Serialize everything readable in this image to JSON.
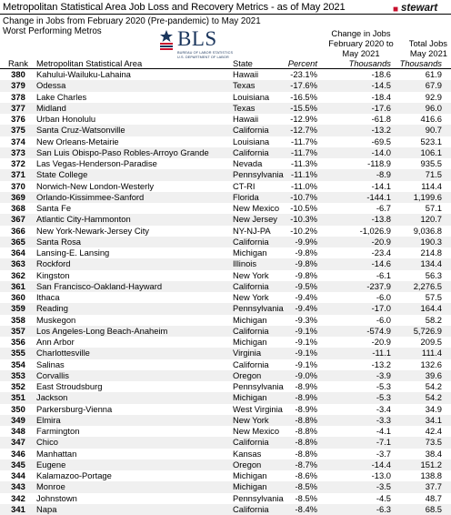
{
  "header": {
    "title": "Metropolitan Statistical Area Job Loss and Recovery Metrics - as of May 2021",
    "subtitle_line1": "Change in Jobs from February 2020 (Pre-pandemic) to May 2021",
    "subtitle_line2": "Worst Performing Metros",
    "brand": "stewart",
    "bls_logo_text": "BLS",
    "bls_logo_line1": "BUREAU OF LABOR STATISTICS",
    "bls_logo_line2": "U.S. DEPARTMENT OF LABOR"
  },
  "columns": {
    "rank": "Rank",
    "area": "Metropolitan Statistical Area",
    "state": "State",
    "change_group_line1": "Change in Jobs",
    "change_group_line2": "February 2020 to",
    "change_group_line3": "May 2021",
    "percent": "Percent",
    "thousands": "Thousands",
    "total_line1": "Total Jobs",
    "total_line2": "May 2021",
    "total_line3": "Thousands"
  },
  "rows": [
    {
      "rank": "380",
      "area": "Kahului-Wailuku-Lahaina",
      "state": "Hawaii",
      "pct": "-23.1%",
      "thou": "-18.6",
      "jobs": "61.9"
    },
    {
      "rank": "379",
      "area": "Odessa",
      "state": "Texas",
      "pct": "-17.6%",
      "thou": "-14.5",
      "jobs": "67.9"
    },
    {
      "rank": "378",
      "area": "Lake Charles",
      "state": "Louisiana",
      "pct": "-16.5%",
      "thou": "-18.4",
      "jobs": "92.9"
    },
    {
      "rank": "377",
      "area": "Midland",
      "state": "Texas",
      "pct": "-15.5%",
      "thou": "-17.6",
      "jobs": "96.0"
    },
    {
      "rank": "376",
      "area": "Urban Honolulu",
      "state": "Hawaii",
      "pct": "-12.9%",
      "thou": "-61.8",
      "jobs": "416.6"
    },
    {
      "rank": "375",
      "area": "Santa Cruz-Watsonville",
      "state": "California",
      "pct": "-12.7%",
      "thou": "-13.2",
      "jobs": "90.7"
    },
    {
      "rank": "374",
      "area": "New Orleans-Metairie",
      "state": "Louisiana",
      "pct": "-11.7%",
      "thou": "-69.5",
      "jobs": "523.1"
    },
    {
      "rank": "373",
      "area": "San Luis Obispo-Paso Robles-Arroyo Grande",
      "state": "California",
      "pct": "-11.7%",
      "thou": "-14.0",
      "jobs": "106.1"
    },
    {
      "rank": "372",
      "area": "Las Vegas-Henderson-Paradise",
      "state": "Nevada",
      "pct": "-11.3%",
      "thou": "-118.9",
      "jobs": "935.5"
    },
    {
      "rank": "371",
      "area": "State College",
      "state": "Pennsylvania",
      "pct": "-11.1%",
      "thou": "-8.9",
      "jobs": "71.5"
    },
    {
      "rank": "370",
      "area": "Norwich-New London-Westerly",
      "state": "CT-RI",
      "pct": "-11.0%",
      "thou": "-14.1",
      "jobs": "114.4"
    },
    {
      "rank": "369",
      "area": "Orlando-Kissimmee-Sanford",
      "state": "Florida",
      "pct": "-10.7%",
      "thou": "-144.1",
      "jobs": "1,199.6"
    },
    {
      "rank": "368",
      "area": "Santa Fe",
      "state": "New Mexico",
      "pct": "-10.5%",
      "thou": "-6.7",
      "jobs": "57.1"
    },
    {
      "rank": "367",
      "area": "Atlantic City-Hammonton",
      "state": "New Jersey",
      "pct": "-10.3%",
      "thou": "-13.8",
      "jobs": "120.7"
    },
    {
      "rank": "366",
      "area": "New York-Newark-Jersey City",
      "state": "NY-NJ-PA",
      "pct": "-10.2%",
      "thou": "-1,026.9",
      "jobs": "9,036.8"
    },
    {
      "rank": "365",
      "area": "Santa Rosa",
      "state": "California",
      "pct": "-9.9%",
      "thou": "-20.9",
      "jobs": "190.3"
    },
    {
      "rank": "364",
      "area": "Lansing-E. Lansing",
      "state": "Michigan",
      "pct": "-9.8%",
      "thou": "-23.4",
      "jobs": "214.8"
    },
    {
      "rank": "363",
      "area": "Rockford",
      "state": "Illinois",
      "pct": "-9.8%",
      "thou": "-14.6",
      "jobs": "134.4"
    },
    {
      "rank": "362",
      "area": "Kingston",
      "state": "New York",
      "pct": "-9.8%",
      "thou": "-6.1",
      "jobs": "56.3"
    },
    {
      "rank": "361",
      "area": "San Francisco-Oakland-Hayward",
      "state": "California",
      "pct": "-9.5%",
      "thou": "-237.9",
      "jobs": "2,276.5"
    },
    {
      "rank": "360",
      "area": "Ithaca",
      "state": "New York",
      "pct": "-9.4%",
      "thou": "-6.0",
      "jobs": "57.5"
    },
    {
      "rank": "359",
      "area": "Reading",
      "state": "Pennsylvania",
      "pct": "-9.4%",
      "thou": "-17.0",
      "jobs": "164.4"
    },
    {
      "rank": "358",
      "area": "Muskegon",
      "state": "Michigan",
      "pct": "-9.3%",
      "thou": "-6.0",
      "jobs": "58.2"
    },
    {
      "rank": "357",
      "area": "Los Angeles-Long Beach-Anaheim",
      "state": "California",
      "pct": "-9.1%",
      "thou": "-574.9",
      "jobs": "5,726.9"
    },
    {
      "rank": "356",
      "area": "Ann Arbor",
      "state": "Michigan",
      "pct": "-9.1%",
      "thou": "-20.9",
      "jobs": "209.5"
    },
    {
      "rank": "355",
      "area": "Charlottesville",
      "state": "Virginia",
      "pct": "-9.1%",
      "thou": "-11.1",
      "jobs": "111.4"
    },
    {
      "rank": "354",
      "area": "Salinas",
      "state": "California",
      "pct": "-9.1%",
      "thou": "-13.2",
      "jobs": "132.6"
    },
    {
      "rank": "353",
      "area": "Corvallis",
      "state": "Oregon",
      "pct": "-9.0%",
      "thou": "-3.9",
      "jobs": "39.6"
    },
    {
      "rank": "352",
      "area": "East Stroudsburg",
      "state": "Pennsylvania",
      "pct": "-8.9%",
      "thou": "-5.3",
      "jobs": "54.2"
    },
    {
      "rank": "351",
      "area": "Jackson",
      "state": "Michigan",
      "pct": "-8.9%",
      "thou": "-5.3",
      "jobs": "54.2"
    },
    {
      "rank": "350",
      "area": "Parkersburg-Vienna",
      "state": "West Virginia",
      "pct": "-8.9%",
      "thou": "-3.4",
      "jobs": "34.9"
    },
    {
      "rank": "349",
      "area": "Elmira",
      "state": "New York",
      "pct": "-8.8%",
      "thou": "-3.3",
      "jobs": "34.1"
    },
    {
      "rank": "348",
      "area": "Farmington",
      "state": "New Mexico",
      "pct": "-8.8%",
      "thou": "-4.1",
      "jobs": "42.4"
    },
    {
      "rank": "347",
      "area": "Chico",
      "state": "California",
      "pct": "-8.8%",
      "thou": "-7.1",
      "jobs": "73.5"
    },
    {
      "rank": "346",
      "area": "Manhattan",
      "state": "Kansas",
      "pct": "-8.8%",
      "thou": "-3.7",
      "jobs": "38.4"
    },
    {
      "rank": "345",
      "area": "Eugene",
      "state": "Oregon",
      "pct": "-8.7%",
      "thou": "-14.4",
      "jobs": "151.2"
    },
    {
      "rank": "344",
      "area": "Kalamazoo-Portage",
      "state": "Michigan",
      "pct": "-8.6%",
      "thou": "-13.0",
      "jobs": "138.8"
    },
    {
      "rank": "343",
      "area": "Monroe",
      "state": "Michigan",
      "pct": "-8.5%",
      "thou": "-3.5",
      "jobs": "37.7"
    },
    {
      "rank": "342",
      "area": "Johnstown",
      "state": "Pennsylvania",
      "pct": "-8.5%",
      "thou": "-4.5",
      "jobs": "48.7"
    },
    {
      "rank": "341",
      "area": "Napa",
      "state": "California",
      "pct": "-8.4%",
      "thou": "-6.3",
      "jobs": "68.5"
    }
  ]
}
